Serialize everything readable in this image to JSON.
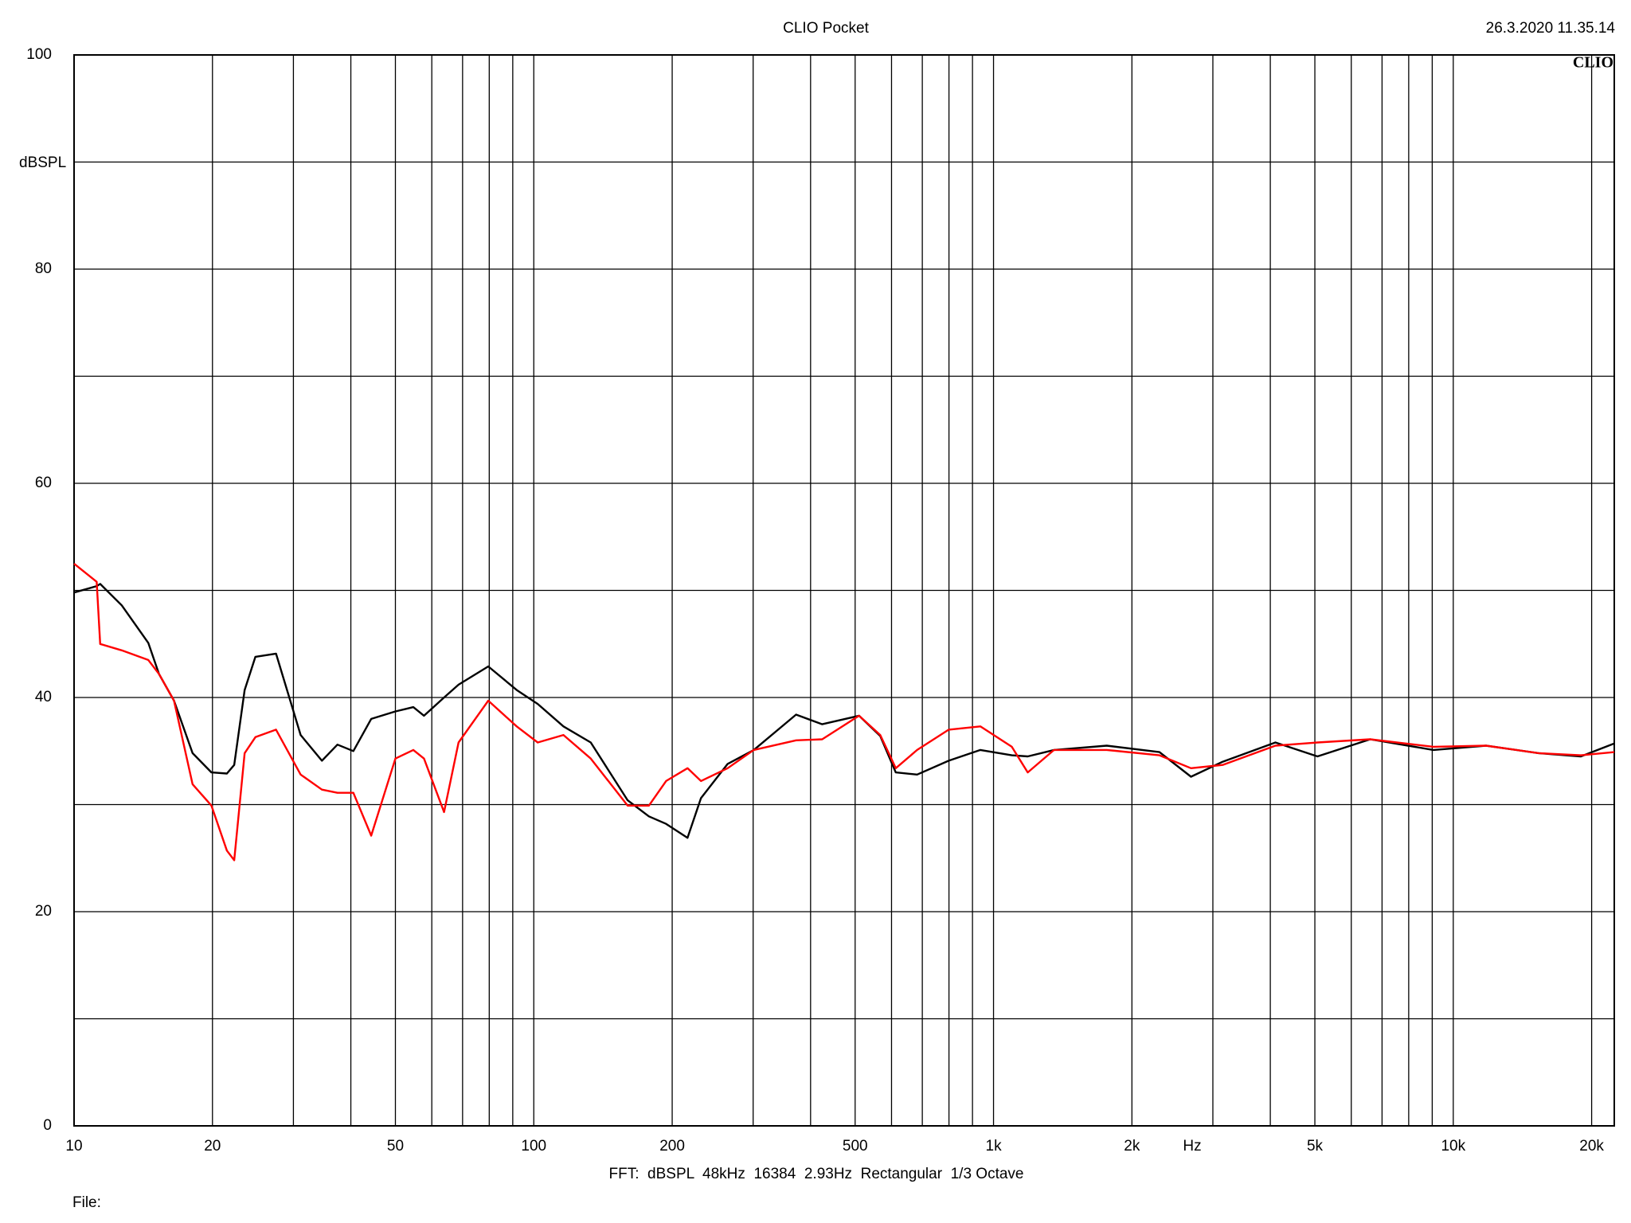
{
  "chart_data": {
    "type": "line",
    "title": "CLIO Pocket",
    "timestamp": "26.3.2020 11.35.14",
    "logo": "CLIO",
    "y_label": "dBSPL",
    "x_label": "Hz",
    "footer": "FFT:  dBSPL  48kHz  16384  2.93Hz  Rectangular  1/3 Octave",
    "file_label": "File:",
    "x_scale": "log",
    "grid": true,
    "xlim": [
      10,
      22400
    ],
    "ylim": [
      0,
      100
    ],
    "xticks": [
      10,
      20,
      {
        "value": 30,
        "label": null
      },
      {
        "value": 40,
        "label": null
      },
      50,
      {
        "value": 60,
        "label": null
      },
      {
        "value": 70,
        "label": null
      },
      {
        "value": 80,
        "label": null
      },
      {
        "value": 90,
        "label": null
      },
      100,
      200,
      {
        "value": 300,
        "label": null
      },
      {
        "value": 400,
        "label": null
      },
      500,
      {
        "value": 600,
        "label": null
      },
      {
        "value": 700,
        "label": null
      },
      {
        "value": 800,
        "label": null
      },
      {
        "value": 900,
        "label": null
      },
      {
        "value": 1000,
        "label": "1k"
      },
      {
        "value": 2000,
        "label": "2k"
      },
      {
        "value": 3000,
        "label": null
      },
      {
        "value": 4000,
        "label": null
      },
      {
        "value": 5000,
        "label": "5k"
      },
      {
        "value": 6000,
        "label": null
      },
      {
        "value": 7000,
        "label": null
      },
      {
        "value": 8000,
        "label": null
      },
      {
        "value": 9000,
        "label": null
      },
      {
        "value": 10000,
        "label": "10k"
      },
      {
        "value": 20000,
        "label": "20k"
      }
    ],
    "yticks": [
      0,
      {
        "value": 10,
        "label": null
      },
      20,
      {
        "value": 30,
        "label": null
      },
      40,
      {
        "value": 50,
        "label": null
      },
      60,
      {
        "value": 70,
        "label": null
      },
      80,
      {
        "value": 90,
        "label": null
      },
      100
    ],
    "x": [
      10,
      11.2,
      11.4,
      12.7,
      14.5,
      15.3,
      16.5,
      18.1,
      19.9,
      21.5,
      22.3,
      23.5,
      24.8,
      27.5,
      31.1,
      34.6,
      37.4,
      40.5,
      44.3,
      50,
      54.7,
      57.7,
      63.8,
      68.6,
      79.6,
      91.8,
      102,
      116,
      133,
      160,
      178,
      194,
      216,
      231,
      264,
      301,
      372,
      424,
      510,
      567,
      613,
      682,
      799,
      936,
      1096,
      1187,
      1354,
      1763,
      2296,
      2689,
      3150,
      4103,
      5066,
      6596,
      9051,
      11785,
      15344,
      18950,
      22400
    ],
    "series": [
      {
        "name": "black",
        "color": "#000000",
        "values": [
          49.8,
          50.4,
          50.6,
          48.6,
          45.1,
          42.2,
          39.7,
          34.8,
          33.0,
          32.9,
          33.7,
          40.7,
          43.8,
          44.1,
          36.5,
          34.1,
          35.6,
          35.0,
          38.0,
          38.7,
          39.1,
          38.3,
          40.0,
          41.2,
          42.9,
          40.7,
          39.4,
          37.3,
          35.8,
          30.4,
          28.9,
          28.2,
          26.9,
          30.6,
          33.8,
          35.1,
          38.4,
          37.5,
          38.3,
          36.4,
          33.0,
          32.8,
          34.1,
          35.1,
          34.6,
          34.5,
          35.1,
          35.5,
          34.9,
          32.6,
          34.0,
          35.8,
          34.5,
          36.1,
          35.1,
          35.5,
          34.8,
          34.5,
          35.7
        ]
      },
      {
        "name": "red",
        "color": "#ff0000",
        "values": [
          52.5,
          50.8,
          45.0,
          44.4,
          43.5,
          42.2,
          39.7,
          31.9,
          29.9,
          25.7,
          24.8,
          34.8,
          36.3,
          37.0,
          32.8,
          31.4,
          31.1,
          31.1,
          27.1,
          34.3,
          35.1,
          34.3,
          29.3,
          35.8,
          39.7,
          37.3,
          35.8,
          36.5,
          34.3,
          29.9,
          29.9,
          32.2,
          33.4,
          32.2,
          33.4,
          35.1,
          36.0,
          36.1,
          38.3,
          36.5,
          33.4,
          35.1,
          37.0,
          37.3,
          35.4,
          33.0,
          35.1,
          35.1,
          34.6,
          33.4,
          33.7,
          35.5,
          35.8,
          36.1,
          35.4,
          35.5,
          34.8,
          34.6,
          34.9
        ]
      }
    ]
  }
}
